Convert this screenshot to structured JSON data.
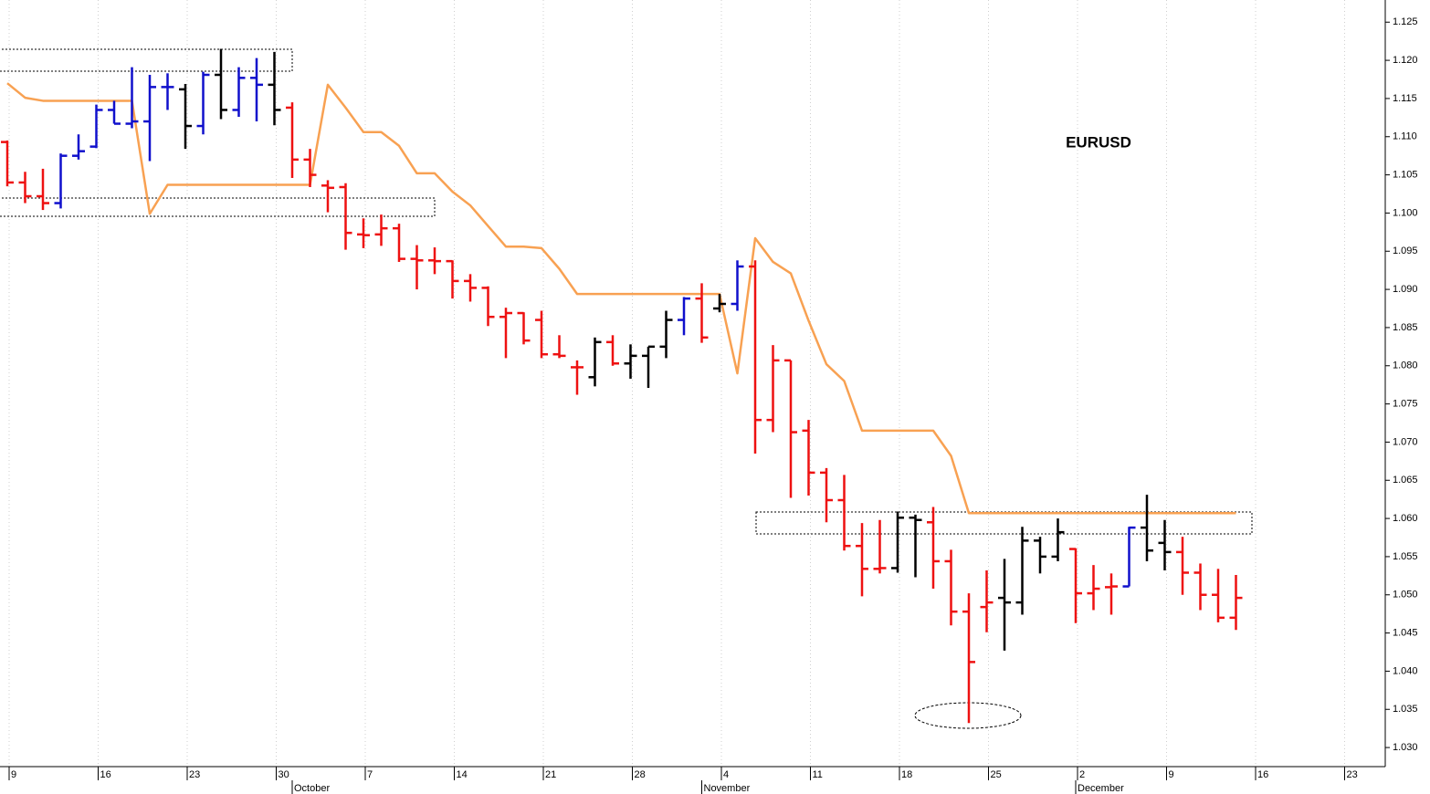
{
  "chart_data": {
    "type": "ohlc",
    "title": "EURUSD",
    "x": [
      "09-09",
      "09-10",
      "09-11",
      "09-12",
      "09-13",
      "09-16",
      "09-17",
      "09-18",
      "09-19",
      "09-20",
      "09-23",
      "09-24",
      "09-25",
      "09-26",
      "09-27",
      "09-30",
      "10-01",
      "10-02",
      "10-03",
      "10-04",
      "10-07",
      "10-08",
      "10-09",
      "10-10",
      "10-11",
      "10-14",
      "10-15",
      "10-16",
      "10-17",
      "10-18",
      "10-21",
      "10-22",
      "10-23",
      "10-24",
      "10-25",
      "10-28",
      "10-29",
      "10-30",
      "10-31",
      "11-01",
      "11-04",
      "11-05",
      "11-06",
      "11-07",
      "11-08",
      "11-11",
      "11-12",
      "11-13",
      "11-14",
      "11-15",
      "11-18",
      "11-19",
      "11-20",
      "11-21",
      "11-22",
      "11-25",
      "11-26",
      "11-27",
      "11-28",
      "11-29",
      "12-02",
      "12-03",
      "12-04",
      "12-05",
      "12-06",
      "12-09",
      "12-10",
      "12-11",
      "12-12",
      "12-13",
      "12-16",
      "12-17",
      "12-18",
      "12-19",
      "12-20",
      "12-23",
      "12-24"
    ],
    "ohlc": {
      "open": [
        1.1093,
        1.104,
        1.1022,
        1.1013,
        1.1075,
        1.1087,
        1.1135,
        1.1117,
        1.112,
        1.1165,
        1.1162,
        1.1114,
        1.1181,
        1.1135,
        1.1177,
        1.1168,
        1.1138,
        1.107,
        1.1036,
        1.1034,
        1.0972,
        1.0972,
        1.098,
        1.094,
        1.0938,
        1.0937,
        1.0911,
        1.0902,
        1.0864,
        1.0869,
        1.086,
        1.0815,
        1.0798,
        1.0785,
        1.0831,
        1.0803,
        1.0813,
        1.0825,
        1.086,
        1.0888,
        1.0875,
        1.0881,
        1.093,
        1.0729,
        1.0807,
        1.0715,
        1.066,
        1.0624,
        1.0564,
        1.0534,
        1.0535,
        1.0601,
        1.0595,
        1.0544,
        1.0478,
        1.0484,
        1.0496,
        1.049,
        1.0571,
        1.055,
        1.056,
        1.0502,
        1.051,
        1.0511,
        1.0588,
        1.0568,
        1.0556,
        1.0529,
        1.05,
        1.047,
        null,
        null,
        null,
        null,
        null,
        null,
        null
      ],
      "high": [
        1.1095,
        1.1054,
        1.1058,
        1.1078,
        1.1103,
        1.1142,
        1.1147,
        1.1191,
        1.1181,
        1.1183,
        1.1169,
        1.1185,
        1.1215,
        1.1191,
        1.1203,
        1.1211,
        1.1145,
        1.1084,
        1.1043,
        1.1039,
        1.0993,
        1.0998,
        1.0986,
        1.0958,
        1.0955,
        1.0938,
        1.092,
        1.0904,
        1.0876,
        1.087,
        1.0872,
        1.084,
        1.0807,
        1.0837,
        1.084,
        1.0828,
        1.0825,
        1.0872,
        1.089,
        1.0908,
        1.0894,
        1.0938,
        1.0938,
        1.0827,
        1.0807,
        1.0729,
        1.0666,
        1.0657,
        1.0594,
        1.0598,
        1.0609,
        1.0605,
        1.0615,
        1.0559,
        1.0502,
        1.0532,
        1.0547,
        1.0589,
        1.0576,
        1.06,
        1.0561,
        1.0539,
        1.0528,
        1.0589,
        1.0631,
        1.0598,
        1.0576,
        1.0541,
        1.0534,
        1.0526,
        null,
        null,
        null,
        null,
        null,
        null,
        null
      ],
      "low": [
        1.1035,
        1.1013,
        1.1004,
        1.1006,
        1.107,
        1.1085,
        1.1117,
        1.1111,
        1.1068,
        1.1135,
        1.1084,
        1.1103,
        1.1123,
        1.1126,
        1.112,
        1.1115,
        1.1046,
        1.1034,
        1.1001,
        1.0952,
        1.0954,
        1.0957,
        1.0936,
        1.09,
        1.092,
        1.0888,
        1.0884,
        1.0852,
        1.081,
        1.0828,
        1.081,
        1.081,
        1.0762,
        1.0773,
        1.08,
        1.0783,
        1.0771,
        1.081,
        1.084,
        1.083,
        1.087,
        1.0872,
        1.0685,
        1.0713,
        1.0627,
        1.063,
        1.0595,
        1.0558,
        1.0498,
        1.0528,
        1.0529,
        1.0523,
        1.0508,
        1.046,
        1.0332,
        1.0451,
        1.0427,
        1.0474,
        1.0528,
        1.0544,
        1.0463,
        1.048,
        1.0474,
        1.0511,
        1.0544,
        1.0532,
        1.05,
        1.048,
        1.0464,
        1.0454,
        null,
        null,
        null,
        null,
        null,
        null,
        null
      ],
      "close": [
        1.104,
        1.1022,
        1.1013,
        1.1075,
        1.1081,
        1.1135,
        1.1117,
        1.112,
        1.1165,
        1.1165,
        1.1114,
        1.1181,
        1.1135,
        1.1177,
        1.1168,
        1.1135,
        1.107,
        1.105,
        1.1033,
        1.0974,
        1.0971,
        1.098,
        1.094,
        1.0938,
        1.0937,
        1.0911,
        1.0902,
        1.0864,
        1.0869,
        1.0833,
        1.0815,
        1.0813,
        1.0798,
        1.0831,
        1.0803,
        1.0813,
        1.0825,
        1.086,
        1.0888,
        1.0837,
        1.0881,
        1.093,
        1.0729,
        1.0807,
        1.0713,
        1.066,
        1.0624,
        1.0564,
        1.0534,
        1.0535,
        1.0601,
        1.0598,
        1.0544,
        1.0478,
        1.0412,
        1.049,
        1.049,
        1.0571,
        1.055,
        1.0582,
        1.0502,
        1.0508,
        1.0511,
        1.0588,
        1.0558,
        1.0556,
        1.0529,
        1.05,
        1.047,
        1.0496,
        null,
        null,
        null,
        null,
        null,
        null,
        null
      ],
      "colors": [
        "#ee1111",
        "#ee1111",
        "#ee1111",
        "#1010cc",
        "#1010cc",
        "#1010cc",
        "#1010cc",
        "#1010cc",
        "#1010cc",
        "#1010cc",
        "#000000",
        "#1010cc",
        "#000000",
        "#1010cc",
        "#1010cc",
        "#000000",
        "#ee1111",
        "#ee1111",
        "#ee1111",
        "#ee1111",
        "#ee1111",
        "#ee1111",
        "#ee1111",
        "#ee1111",
        "#ee1111",
        "#ee1111",
        "#ee1111",
        "#ee1111",
        "#ee1111",
        "#ee1111",
        "#ee1111",
        "#ee1111",
        "#ee1111",
        "#000000",
        "#ee1111",
        "#000000",
        "#000000",
        "#000000",
        "#1010cc",
        "#ee1111",
        "#000000",
        "#1010cc",
        "#ee1111",
        "#ee1111",
        "#ee1111",
        "#ee1111",
        "#ee1111",
        "#ee1111",
        "#ee1111",
        "#ee1111",
        "#000000",
        "#000000",
        "#ee1111",
        "#ee1111",
        "#ee1111",
        "#ee1111",
        "#000000",
        "#000000",
        "#000000",
        "#000000",
        "#ee1111",
        "#ee1111",
        "#ee1111",
        "#1010cc",
        "#000000",
        "#000000",
        "#ee1111",
        "#ee1111",
        "#ee1111",
        "#ee1111",
        null,
        null,
        null,
        null,
        null,
        null,
        null
      ]
    },
    "series": [
      {
        "color": "#f8a152",
        "values": [
          1.117,
          1.1151,
          1.1147,
          1.1147,
          1.1147,
          1.1147,
          1.1147,
          1.1147,
          1.0999,
          1.1037,
          1.1037,
          1.1037,
          1.1037,
          1.1037,
          1.1037,
          1.1037,
          1.1037,
          1.1037,
          1.1168,
          1.1138,
          1.1106,
          1.1106,
          1.1088,
          1.1052,
          1.1052,
          1.1028,
          1.101,
          1.0983,
          1.0956,
          1.0956,
          1.0954,
          1.0927,
          1.0894,
          1.0894,
          1.0894,
          1.0894,
          1.0894,
          1.0894,
          1.0894,
          1.0894,
          1.0894,
          1.079,
          1.0967,
          1.0936,
          1.0921,
          1.0859,
          1.0802,
          1.078,
          1.0715,
          1.0715,
          1.0715,
          1.0715,
          1.0715,
          1.0682,
          1.0607,
          1.0607,
          1.0607,
          1.0607,
          1.0607,
          1.0607,
          1.0607,
          1.0607,
          1.0607,
          1.0607,
          1.0607,
          1.0607,
          1.0607,
          1.0607,
          1.0607,
          1.0607,
          null,
          null,
          null,
          null,
          null,
          null,
          null
        ]
      }
    ],
    "ylim": [
      1.0275,
      1.1279
    ],
    "yticks": [
      {
        "value": 1.03,
        "label": "1.030"
      },
      1.035,
      {
        "value": 1.04,
        "label": "1.040"
      },
      1.045,
      {
        "value": 1.05,
        "label": "1.050"
      },
      1.055,
      {
        "value": 1.06,
        "label": "1.060"
      },
      1.065,
      {
        "value": 1.07,
        "label": "1.070"
      },
      1.075,
      {
        "value": 1.08,
        "label": "1.080"
      },
      1.085,
      {
        "value": 1.09,
        "label": "1.090"
      },
      1.095,
      {
        "value": 1.1,
        "label": "1.100"
      },
      1.105,
      {
        "value": 1.11,
        "label": "1.110"
      },
      1.115,
      {
        "value": 1.12,
        "label": "1.120"
      },
      1.125
    ],
    "xticks": [
      {
        "value": "09-09",
        "label": "9"
      },
      {
        "value": "09-16",
        "label": "16"
      },
      {
        "value": "09-23",
        "label": "23"
      },
      {
        "value": "09-30",
        "label": "30"
      },
      {
        "value": "10-07",
        "label": "7"
      },
      {
        "value": "10-14",
        "label": "14"
      },
      {
        "value": "10-21",
        "label": "21"
      },
      {
        "value": "10-28",
        "label": "28"
      },
      {
        "value": "11-04",
        "label": "4"
      },
      {
        "value": "11-11",
        "label": "11"
      },
      {
        "value": "11-18",
        "label": "18"
      },
      {
        "value": "11-25",
        "label": "25"
      },
      {
        "value": "12-02",
        "label": "2"
      },
      {
        "value": "12-09",
        "label": "9"
      },
      {
        "value": "12-16",
        "label": "16"
      },
      {
        "value": "12-23",
        "label": "23"
      }
    ],
    "months": [
      {
        "value": "10-01",
        "label": "October"
      },
      {
        "value": "11-01",
        "label": "November"
      },
      {
        "value": "12-02",
        "label": "December"
      }
    ],
    "grid": true
  }
}
